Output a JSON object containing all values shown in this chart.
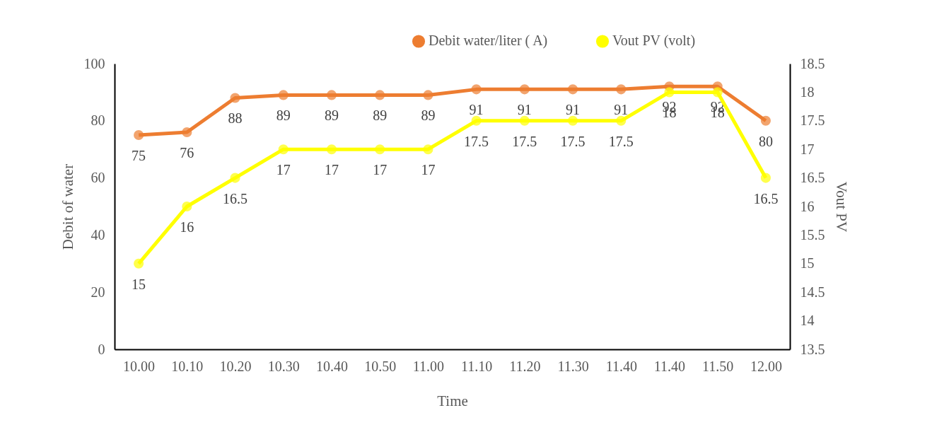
{
  "chart_data": {
    "type": "line",
    "xlabel": "Time",
    "ylabel": "Debit of water",
    "y2label": "Vout PV",
    "categories": [
      "10.00",
      "10.10",
      "10.20",
      "10.30",
      "10.40",
      "10.50",
      "11.00",
      "11.10",
      "11.20",
      "11.30",
      "11.40",
      "11.40",
      "11.50",
      "12.00"
    ],
    "series": [
      {
        "name": "Debit water/liter ( A)",
        "color": "#ed7d31",
        "values": [
          75,
          76,
          88,
          89,
          89,
          89,
          89,
          91,
          91,
          91,
          91,
          92,
          92,
          80
        ]
      },
      {
        "name": "Vout PV (volt)",
        "color": "#ffff00",
        "axis": "y2",
        "values": [
          15,
          16,
          16.5,
          17,
          17,
          17,
          17,
          17.5,
          17.5,
          17.5,
          17.5,
          18,
          18,
          16.5
        ]
      }
    ],
    "ylim": [
      0,
      100
    ],
    "yticks": [
      0,
      20,
      40,
      60,
      80,
      100
    ],
    "y2lim": [
      13.5,
      18.5
    ],
    "y2ticks": [
      13.5,
      14,
      14.5,
      15,
      15.5,
      16,
      16.5,
      17,
      17.5,
      18,
      18.5
    ],
    "data_labels": true,
    "marker": "circle",
    "line_style": "solid",
    "legend": "top right",
    "grid": false
  }
}
